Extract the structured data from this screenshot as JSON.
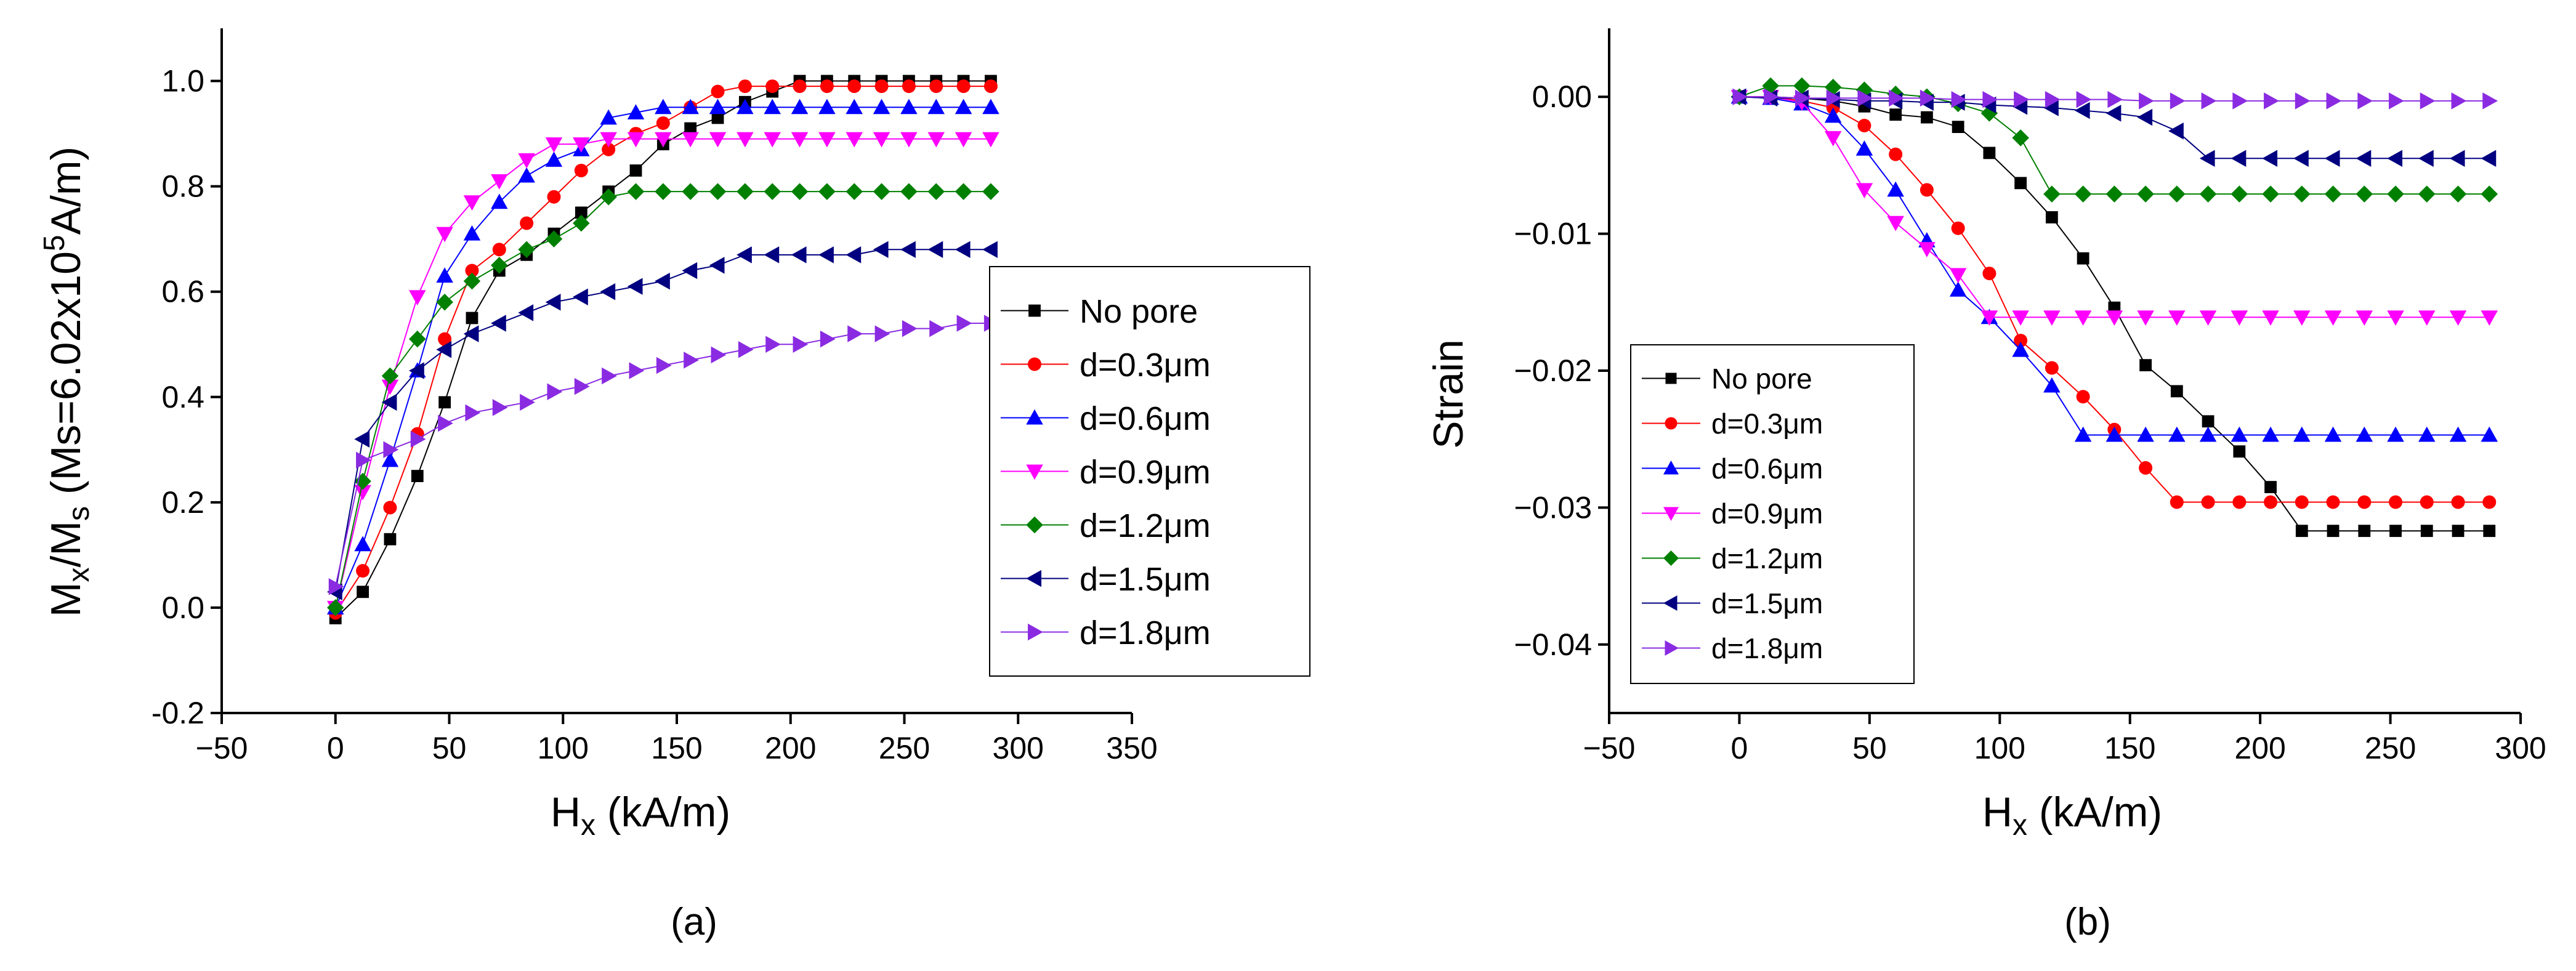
{
  "chart_data": [
    {
      "type": "line",
      "panel_label": "(a)",
      "xlabel_main": "H",
      "xlabel_sub": "x",
      "xlabel_rest": " (kA/m)",
      "ylabel_parts": [
        "M",
        "x",
        "/M",
        "s",
        " (Ms=6.02x10",
        "5",
        "A/m)"
      ],
      "xlim": [
        -50,
        350
      ],
      "ylim": [
        -0.2,
        1.1
      ],
      "xticks": [
        -50,
        0,
        50,
        100,
        150,
        200,
        250,
        300,
        350
      ],
      "yticks": [
        -0.2,
        0.0,
        0.2,
        0.4,
        0.6,
        0.8,
        1.0
      ],
      "xtick_labels": [
        "−50",
        "0",
        "50",
        "100",
        "150",
        "200",
        "250",
        "300",
        "350"
      ],
      "ytick_labels": [
        "-0.2",
        "0.0",
        "0.2",
        "0.4",
        "0.6",
        "0.8",
        "1.0"
      ],
      "legend_position": "center-right",
      "x": [
        0,
        12,
        24,
        36,
        48,
        60,
        72,
        84,
        96,
        108,
        120,
        132,
        144,
        156,
        168,
        180,
        192,
        204,
        216,
        228,
        240,
        252,
        264,
        276,
        288
      ],
      "series": [
        {
          "name": "No pore",
          "values": [
            -0.02,
            0.03,
            0.13,
            0.25,
            0.39,
            0.55,
            0.64,
            0.67,
            0.71,
            0.75,
            0.79,
            0.83,
            0.88,
            0.91,
            0.93,
            0.96,
            0.98,
            1.0,
            1.0,
            1.0,
            1.0,
            1.0,
            1.0,
            1.0,
            1.0
          ]
        },
        {
          "name": "d=0.3μm",
          "values": [
            -0.01,
            0.07,
            0.19,
            0.33,
            0.51,
            0.64,
            0.68,
            0.73,
            0.78,
            0.83,
            0.87,
            0.9,
            0.92,
            0.95,
            0.98,
            0.99,
            0.99,
            0.99,
            0.99,
            0.99,
            0.99,
            0.99,
            0.99,
            0.99,
            0.99
          ]
        },
        {
          "name": "d=0.6μm",
          "values": [
            0.0,
            0.12,
            0.28,
            0.45,
            0.63,
            0.71,
            0.77,
            0.82,
            0.85,
            0.87,
            0.93,
            0.94,
            0.95,
            0.95,
            0.95,
            0.95,
            0.95,
            0.95,
            0.95,
            0.95,
            0.95,
            0.95,
            0.95,
            0.95,
            0.95
          ]
        },
        {
          "name": "d=0.9μm",
          "values": [
            0.0,
            0.22,
            0.42,
            0.59,
            0.71,
            0.77,
            0.81,
            0.85,
            0.88,
            0.88,
            0.89,
            0.89,
            0.89,
            0.89,
            0.89,
            0.89,
            0.89,
            0.89,
            0.89,
            0.89,
            0.89,
            0.89,
            0.89,
            0.89,
            0.89
          ]
        },
        {
          "name": "d=1.2μm",
          "values": [
            0.0,
            0.24,
            0.44,
            0.51,
            0.58,
            0.62,
            0.65,
            0.68,
            0.7,
            0.73,
            0.78,
            0.79,
            0.79,
            0.79,
            0.79,
            0.79,
            0.79,
            0.79,
            0.79,
            0.79,
            0.79,
            0.79,
            0.79,
            0.79,
            0.79
          ]
        },
        {
          "name": "d=1.5μm",
          "values": [
            0.03,
            0.32,
            0.39,
            0.45,
            0.49,
            0.52,
            0.54,
            0.56,
            0.58,
            0.59,
            0.6,
            0.61,
            0.62,
            0.64,
            0.65,
            0.67,
            0.67,
            0.67,
            0.67,
            0.67,
            0.68,
            0.68,
            0.68,
            0.68,
            0.68
          ]
        },
        {
          "name": "d=1.8μm",
          "values": [
            0.04,
            0.28,
            0.3,
            0.32,
            0.35,
            0.37,
            0.38,
            0.39,
            0.41,
            0.42,
            0.44,
            0.45,
            0.46,
            0.47,
            0.48,
            0.49,
            0.5,
            0.5,
            0.51,
            0.52,
            0.52,
            0.53,
            0.53,
            0.54,
            0.54
          ]
        }
      ]
    },
    {
      "type": "line",
      "panel_label": "(b)",
      "xlabel_main": "H",
      "xlabel_sub": "x",
      "xlabel_rest": " (kA/m)",
      "ylabel": "Strain",
      "xlim": [
        -50,
        300
      ],
      "ylim": [
        -0.045,
        0.005
      ],
      "xticks": [
        -50,
        0,
        50,
        100,
        150,
        200,
        250,
        300
      ],
      "yticks": [
        -0.04,
        -0.03,
        -0.02,
        -0.01,
        0.0
      ],
      "xtick_labels": [
        "−50",
        "0",
        "50",
        "100",
        "150",
        "200",
        "250",
        "300"
      ],
      "ytick_labels": [
        "−0.04",
        "−0.03",
        "−0.02",
        "−0.01",
        "0.00"
      ],
      "legend_position": "bottom-left",
      "x": [
        0,
        12,
        24,
        36,
        48,
        60,
        72,
        84,
        96,
        108,
        120,
        132,
        144,
        156,
        168,
        180,
        192,
        204,
        216,
        228,
        240,
        252,
        264,
        276,
        288
      ],
      "series": [
        {
          "name": "No pore",
          "values": [
            0.0,
            0.0,
            -0.0001,
            -0.0003,
            -0.0007,
            -0.0013,
            -0.0015,
            -0.0022,
            -0.0041,
            -0.0063,
            -0.0088,
            -0.0118,
            -0.0154,
            -0.0196,
            -0.0215,
            -0.0237,
            -0.0259,
            -0.0285,
            -0.0317,
            -0.0317,
            -0.0317,
            -0.0317,
            -0.0317,
            -0.0317,
            -0.0317
          ]
        },
        {
          "name": "d=0.3μm",
          "values": [
            0.0,
            0.0,
            -0.0003,
            -0.0008,
            -0.0021,
            -0.0042,
            -0.0068,
            -0.0096,
            -0.0129,
            -0.0178,
            -0.0198,
            -0.0219,
            -0.0243,
            -0.0271,
            -0.0296,
            -0.0296,
            -0.0296,
            -0.0296,
            -0.0296,
            -0.0296,
            -0.0296,
            -0.0296,
            -0.0296,
            -0.0296,
            -0.0296
          ]
        },
        {
          "name": "d=0.6μm",
          "values": [
            0.0,
            -0.0001,
            -0.0005,
            -0.0014,
            -0.0038,
            -0.0068,
            -0.0105,
            -0.0141,
            -0.0161,
            -0.0185,
            -0.0211,
            -0.0247,
            -0.0247,
            -0.0247,
            -0.0247,
            -0.0247,
            -0.0247,
            -0.0247,
            -0.0247,
            -0.0247,
            -0.0247,
            -0.0247,
            -0.0247,
            -0.0247,
            -0.0247
          ]
        },
        {
          "name": "d=0.9μm",
          "values": [
            0.0,
            0.0,
            -0.0004,
            -0.003,
            -0.0068,
            -0.0092,
            -0.0111,
            -0.013,
            -0.0161,
            -0.0161,
            -0.0161,
            -0.0161,
            -0.0161,
            -0.0161,
            -0.0161,
            -0.0161,
            -0.0161,
            -0.0161,
            -0.0161,
            -0.0161,
            -0.0161,
            -0.0161,
            -0.0161,
            -0.0161,
            -0.0161
          ]
        },
        {
          "name": "d=1.2μm",
          "values": [
            0.0,
            0.0008,
            0.0008,
            0.0007,
            0.0005,
            0.0002,
            0.0,
            -0.0005,
            -0.0012,
            -0.003,
            -0.0071,
            -0.0071,
            -0.0071,
            -0.0071,
            -0.0071,
            -0.0071,
            -0.0071,
            -0.0071,
            -0.0071,
            -0.0071,
            -0.0071,
            -0.0071,
            -0.0071,
            -0.0071,
            -0.0071
          ]
        },
        {
          "name": "d=1.5μm",
          "values": [
            0.0,
            -0.0001,
            -0.0001,
            -0.0002,
            -0.0003,
            -0.0003,
            -0.0004,
            -0.0004,
            -0.0006,
            -0.0007,
            -0.0008,
            -0.001,
            -0.0012,
            -0.0015,
            -0.0025,
            -0.0045,
            -0.0045,
            -0.0045,
            -0.0045,
            -0.0045,
            -0.0045,
            -0.0045,
            -0.0045,
            -0.0045,
            -0.0045
          ]
        },
        {
          "name": "d=1.8μm",
          "values": [
            0.0,
            0.0,
            -0.0001,
            -0.0001,
            -0.0001,
            -0.0001,
            -0.0001,
            -0.0002,
            -0.0002,
            -0.0002,
            -0.0002,
            -0.0002,
            -0.0002,
            -0.0003,
            -0.0003,
            -0.0003,
            -0.0003,
            -0.0003,
            -0.0003,
            -0.0003,
            -0.0003,
            -0.0003,
            -0.0003,
            -0.0003,
            -0.0003
          ]
        }
      ]
    }
  ],
  "series_style": [
    {
      "color": "#000000",
      "marker": "square"
    },
    {
      "color": "#ff0000",
      "marker": "circle"
    },
    {
      "color": "#0000ff",
      "marker": "triangle-up"
    },
    {
      "color": "#ff00ff",
      "marker": "triangle-down"
    },
    {
      "color": "#008000",
      "marker": "diamond"
    },
    {
      "color": "#000080",
      "marker": "triangle-left"
    },
    {
      "color": "#8a2be2",
      "marker": "triangle-right"
    }
  ]
}
